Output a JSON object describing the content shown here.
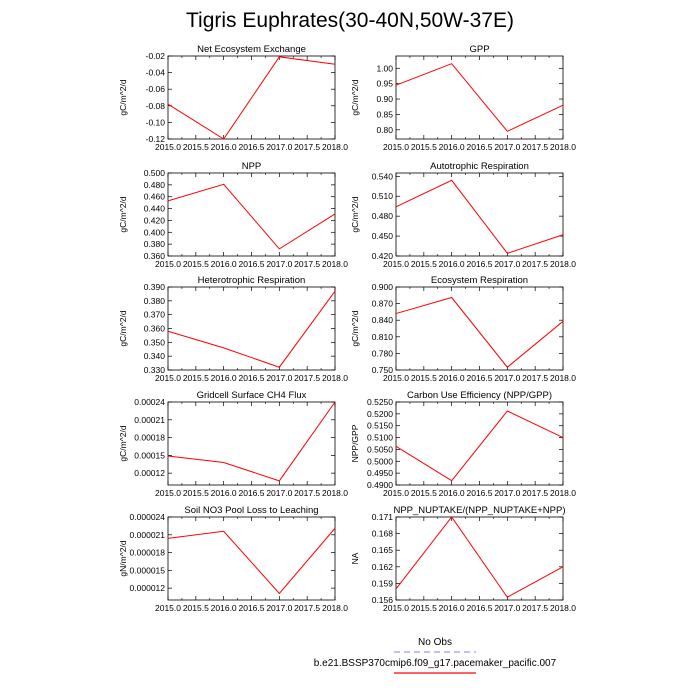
{
  "page": {
    "title": "Tigris Euphrates(30-40N,50W-37E)"
  },
  "legend": {
    "obs_label": "No Obs",
    "obs_color": "#9999ff",
    "model_label": "b.e21.BSSP370cmip6.f09_g17.pacemaker_pacific.007",
    "model_color": "#ff0000"
  },
  "chart_data": [
    {
      "type": "line",
      "title": "Net Ecosystem Exchange",
      "ylabel": "gC/m^2/d",
      "x": [
        2015.0,
        2016.0,
        2017.0,
        2018.0
      ],
      "xlim": [
        2015.0,
        2018.0
      ],
      "xticks": [
        "2015.0",
        "2015.5",
        "2016.0",
        "2016.5",
        "2017.0",
        "2017.5",
        "2018.0"
      ],
      "ylim": [
        -0.12,
        -0.02
      ],
      "yticks": [
        -0.12,
        -0.1,
        -0.08,
        -0.06,
        -0.04,
        -0.02
      ],
      "ytick_labels": [
        "-0.12",
        "-0.10",
        "-0.08",
        "-0.06",
        "-0.04",
        "-0.02"
      ],
      "series": [
        {
          "values": [
            -0.078,
            -0.12,
            -0.021,
            -0.03
          ]
        }
      ]
    },
    {
      "type": "line",
      "title": "GPP",
      "ylabel": "gC/m^2/d",
      "x": [
        2015.0,
        2016.0,
        2017.0,
        2018.0
      ],
      "xlim": [
        2015.0,
        2018.0
      ],
      "xticks": [
        "2015.0",
        "2015.5",
        "2016.0",
        "2016.5",
        "2017.0",
        "2017.5",
        "2018.0"
      ],
      "ylim": [
        0.77,
        1.04
      ],
      "yticks": [
        0.8,
        0.85,
        0.9,
        0.95,
        1.0
      ],
      "ytick_labels": [
        "0.80",
        "0.85",
        "0.90",
        "0.95",
        "1.00"
      ],
      "series": [
        {
          "values": [
            0.945,
            1.015,
            0.795,
            0.88
          ]
        }
      ]
    },
    {
      "type": "line",
      "title": "NPP",
      "ylabel": "gC/m^2/d",
      "x": [
        2015.0,
        2016.0,
        2017.0,
        2018.0
      ],
      "xlim": [
        2015.0,
        2018.0
      ],
      "xticks": [
        "2015.0",
        "2015.5",
        "2016.0",
        "2016.5",
        "2017.0",
        "2017.5",
        "2018.0"
      ],
      "ylim": [
        0.36,
        0.5
      ],
      "yticks": [
        0.36,
        0.38,
        0.4,
        0.42,
        0.44,
        0.46,
        0.48,
        0.5
      ],
      "ytick_labels": [
        "0.360",
        "0.380",
        "0.400",
        "0.420",
        "0.440",
        "0.460",
        "0.480",
        "0.500"
      ],
      "series": [
        {
          "values": [
            0.453,
            0.481,
            0.372,
            0.431
          ]
        }
      ]
    },
    {
      "type": "line",
      "title": "Autotrophic Respiration",
      "ylabel": "gC/m^2/d",
      "x": [
        2015.0,
        2016.0,
        2017.0,
        2018.0
      ],
      "xlim": [
        2015.0,
        2018.0
      ],
      "xticks": [
        "2015.0",
        "2015.5",
        "2016.0",
        "2016.5",
        "2017.0",
        "2017.5",
        "2018.0"
      ],
      "ylim": [
        0.42,
        0.545
      ],
      "yticks": [
        0.42,
        0.45,
        0.48,
        0.51,
        0.54
      ],
      "ytick_labels": [
        "0.420",
        "0.450",
        "0.480",
        "0.510",
        "0.540"
      ],
      "series": [
        {
          "values": [
            0.494,
            0.534,
            0.424,
            0.452
          ]
        }
      ]
    },
    {
      "type": "line",
      "title": "Heterotrophic Respiration",
      "ylabel": "gC/m^2/d",
      "x": [
        2015.0,
        2016.0,
        2017.0,
        2018.0
      ],
      "xlim": [
        2015.0,
        2018.0
      ],
      "xticks": [
        "2015.0",
        "2015.5",
        "2016.0",
        "2016.5",
        "2017.0",
        "2017.5",
        "2018.0"
      ],
      "ylim": [
        0.33,
        0.39
      ],
      "yticks": [
        0.33,
        0.34,
        0.35,
        0.36,
        0.37,
        0.38,
        0.39
      ],
      "ytick_labels": [
        "0.330",
        "0.340",
        "0.350",
        "0.360",
        "0.370",
        "0.380",
        "0.390"
      ],
      "series": [
        {
          "values": [
            0.358,
            0.346,
            0.332,
            0.387
          ]
        }
      ]
    },
    {
      "type": "line",
      "title": "Ecosystem Respiration",
      "ylabel": "gC/m^2/d",
      "x": [
        2015.0,
        2016.0,
        2017.0,
        2018.0
      ],
      "xlim": [
        2015.0,
        2018.0
      ],
      "xticks": [
        "2015.0",
        "2015.5",
        "2016.0",
        "2016.5",
        "2017.0",
        "2017.5",
        "2018.0"
      ],
      "ylim": [
        0.75,
        0.9
      ],
      "yticks": [
        0.75,
        0.78,
        0.81,
        0.84,
        0.87,
        0.9
      ],
      "ytick_labels": [
        "0.750",
        "0.780",
        "0.810",
        "0.840",
        "0.870",
        "0.900"
      ],
      "series": [
        {
          "values": [
            0.852,
            0.881,
            0.755,
            0.838
          ]
        }
      ]
    },
    {
      "type": "line",
      "title": "Gridcell Surface CH4 Flux",
      "ylabel": "gC/m^2/d",
      "x": [
        2015.0,
        2016.0,
        2017.0,
        2018.0
      ],
      "xlim": [
        2015.0,
        2018.0
      ],
      "xticks": [
        "2015.0",
        "2015.5",
        "2016.0",
        "2016.5",
        "2017.0",
        "2017.5",
        "2018.0"
      ],
      "ylim": [
        0.0001,
        0.00024
      ],
      "yticks": [
        0.00012,
        0.00015,
        0.00018,
        0.00021,
        0.00024
      ],
      "ytick_labels": [
        "0.00012",
        "0.00015",
        "0.00018",
        "0.00021",
        "0.00024"
      ],
      "series": [
        {
          "values": [
            0.000149,
            0.000138,
            0.000107,
            0.00024
          ]
        }
      ]
    },
    {
      "type": "line",
      "title": "Carbon Use Efficiency (NPP/GPP)",
      "ylabel": "NPP/GPP",
      "x": [
        2015.0,
        2016.0,
        2017.0,
        2018.0
      ],
      "xlim": [
        2015.0,
        2018.0
      ],
      "xticks": [
        "2015.0",
        "2015.5",
        "2016.0",
        "2016.5",
        "2017.0",
        "2017.5",
        "2018.0"
      ],
      "ylim": [
        0.49,
        0.525
      ],
      "yticks": [
        0.49,
        0.495,
        0.5,
        0.505,
        0.51,
        0.515,
        0.52,
        0.525
      ],
      "ytick_labels": [
        "0.4900",
        "0.4950",
        "0.5000",
        "0.5050",
        "0.5100",
        "0.5150",
        "0.5200",
        "0.5250"
      ],
      "series": [
        {
          "values": [
            0.5063,
            0.4918,
            0.5212,
            0.51
          ]
        }
      ]
    },
    {
      "type": "line",
      "title": "Soil NO3 Pool Loss to Leaching",
      "ylabel": "gN/m^2/d",
      "x": [
        2015.0,
        2016.0,
        2017.0,
        2018.0
      ],
      "xlim": [
        2015.0,
        2018.0
      ],
      "xticks": [
        "2015.0",
        "2015.5",
        "2016.0",
        "2016.5",
        "2017.0",
        "2017.5",
        "2018.0"
      ],
      "ylim": [
        1e-05,
        2.4e-05
      ],
      "yticks": [
        1.2e-05,
        1.5e-05,
        1.8e-05,
        2.1e-05,
        2.4e-05
      ],
      "ytick_labels": [
        "0.000012",
        "0.000015",
        "0.000018",
        "0.000021",
        "0.000024"
      ],
      "series": [
        {
          "values": [
            2.04e-05,
            2.16e-05,
            1.11e-05,
            2.21e-05
          ]
        }
      ]
    },
    {
      "type": "line",
      "title": "NPP_NUPTAKE/(NPP_NUPTAKE+NPP)",
      "ylabel": "NA",
      "x": [
        2015.0,
        2016.0,
        2017.0,
        2018.0
      ],
      "xlim": [
        2015.0,
        2018.0
      ],
      "xticks": [
        "2015.0",
        "2015.5",
        "2016.0",
        "2016.5",
        "2017.0",
        "2017.5",
        "2018.0"
      ],
      "ylim": [
        0.156,
        0.171
      ],
      "yticks": [
        0.156,
        0.159,
        0.162,
        0.165,
        0.168,
        0.171
      ],
      "ytick_labels": [
        "0.156",
        "0.159",
        "0.162",
        "0.165",
        "0.168",
        "0.171"
      ],
      "series": [
        {
          "values": [
            0.158,
            0.171,
            0.1565,
            0.162
          ]
        }
      ]
    }
  ]
}
